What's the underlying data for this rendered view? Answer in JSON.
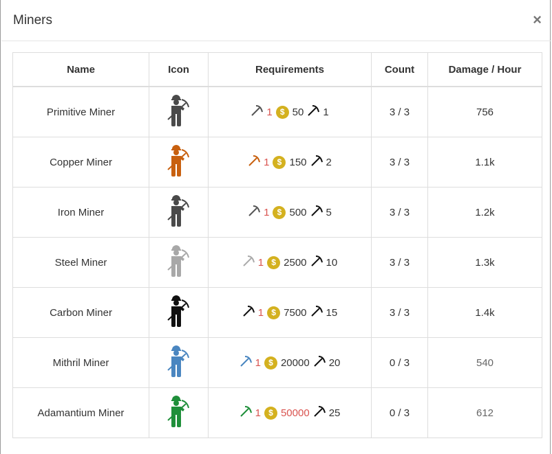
{
  "title": "Miners",
  "close_label": "×",
  "columns": [
    "Name",
    "Icon",
    "Requirements",
    "Count",
    "Damage / Hour"
  ],
  "rows": [
    {
      "name": "Primitive Miner",
      "color": "#4a4a4a",
      "pick_color": "#555555",
      "pick_qty": "1",
      "gold": "50",
      "gold_short": false,
      "level": "1",
      "count": "3 / 3",
      "damage": "756",
      "active": true
    },
    {
      "name": "Copper Miner",
      "color": "#c8600f",
      "pick_color": "#c8600f",
      "pick_qty": "1",
      "gold": "150",
      "gold_short": false,
      "level": "2",
      "count": "3 / 3",
      "damage": "1.1k",
      "active": true
    },
    {
      "name": "Iron Miner",
      "color": "#4a4a4a",
      "pick_color": "#555555",
      "pick_qty": "1",
      "gold": "500",
      "gold_short": false,
      "level": "5",
      "count": "3 / 3",
      "damage": "1.2k",
      "active": true
    },
    {
      "name": "Steel Miner",
      "color": "#a8a8a8",
      "pick_color": "#aaaaaa",
      "pick_qty": "1",
      "gold": "2500",
      "gold_short": false,
      "level": "10",
      "count": "3 / 3",
      "damage": "1.3k",
      "active": true
    },
    {
      "name": "Carbon Miner",
      "color": "#111111",
      "pick_color": "#111111",
      "pick_qty": "1",
      "gold": "7500",
      "gold_short": false,
      "level": "15",
      "count": "3 / 3",
      "damage": "1.4k",
      "active": true
    },
    {
      "name": "Mithril Miner",
      "color": "#4a86c0",
      "pick_color": "#4a86c0",
      "pick_qty": "1",
      "gold": "20000",
      "gold_short": false,
      "level": "20",
      "count": "0 / 3",
      "damage": "540",
      "active": false
    },
    {
      "name": "Adamantium Miner",
      "color": "#1f8f3a",
      "pick_color": "#1f8f3a",
      "pick_qty": "1",
      "gold": "50000",
      "gold_short": true,
      "level": "25",
      "count": "0 / 3",
      "damage": "612",
      "active": false
    }
  ]
}
